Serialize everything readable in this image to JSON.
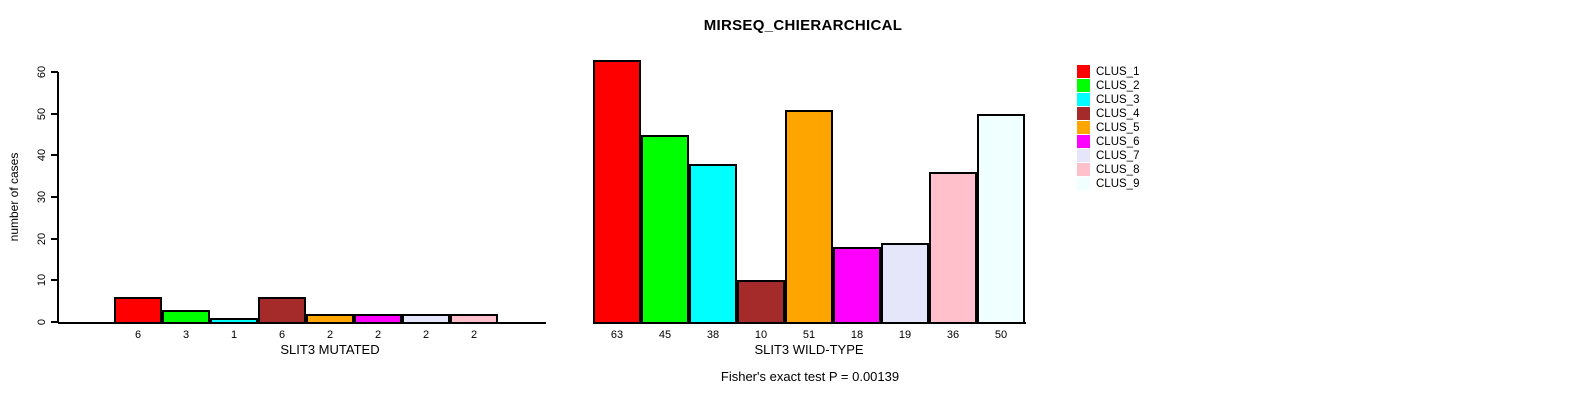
{
  "title": "MIRSEQ_CHIERARCHICAL",
  "footer": "Fisher's exact test P = 0.00139",
  "y_axis": {
    "label": "number of cases",
    "ticks": [
      0,
      10,
      20,
      30,
      40,
      50,
      60
    ]
  },
  "legend": {
    "items": [
      {
        "label": "CLUS_1",
        "color": "#FF0000"
      },
      {
        "label": "CLUS_2",
        "color": "#00FF00"
      },
      {
        "label": "CLUS_3",
        "color": "#00FFFF"
      },
      {
        "label": "CLUS_4",
        "color": "#A52A2A"
      },
      {
        "label": "CLUS_5",
        "color": "#FFA500"
      },
      {
        "label": "CLUS_6",
        "color": "#FF00FF"
      },
      {
        "label": "CLUS_7",
        "color": "#E6E6FA"
      },
      {
        "label": "CLUS_8",
        "color": "#FFC0CB"
      },
      {
        "label": "CLUS_9",
        "color": "#F0FFFF"
      }
    ]
  },
  "chart_data": [
    {
      "type": "bar",
      "title": "MIRSEQ_CHIERARCHICAL",
      "xlabel": "SLIT3 MUTATED",
      "ylabel": "number of cases",
      "ylim": [
        0,
        60
      ],
      "grid": false,
      "legend_position": "right",
      "categories": [
        "CLUS_1",
        "CLUS_2",
        "CLUS_3",
        "CLUS_4",
        "CLUS_5",
        "CLUS_6",
        "CLUS_7",
        "CLUS_8",
        "CLUS_9"
      ],
      "values": [
        6,
        3,
        1,
        6,
        2,
        2,
        2,
        2,
        0
      ],
      "bar_labels": [
        "6",
        "3",
        "1",
        "6",
        "2",
        "2",
        "2",
        "2",
        ""
      ]
    },
    {
      "type": "bar",
      "title": "MIRSEQ_CHIERARCHICAL",
      "xlabel": "SLIT3 WILD-TYPE",
      "ylabel": "number of cases",
      "ylim": [
        0,
        60
      ],
      "grid": false,
      "legend_position": "right",
      "categories": [
        "CLUS_1",
        "CLUS_2",
        "CLUS_3",
        "CLUS_4",
        "CLUS_5",
        "CLUS_6",
        "CLUS_7",
        "CLUS_8",
        "CLUS_9"
      ],
      "values": [
        63,
        45,
        38,
        10,
        51,
        18,
        19,
        36,
        50
      ],
      "bar_labels": [
        "63",
        "45",
        "38",
        "10",
        "51",
        "18",
        "19",
        "36",
        "50"
      ]
    }
  ]
}
